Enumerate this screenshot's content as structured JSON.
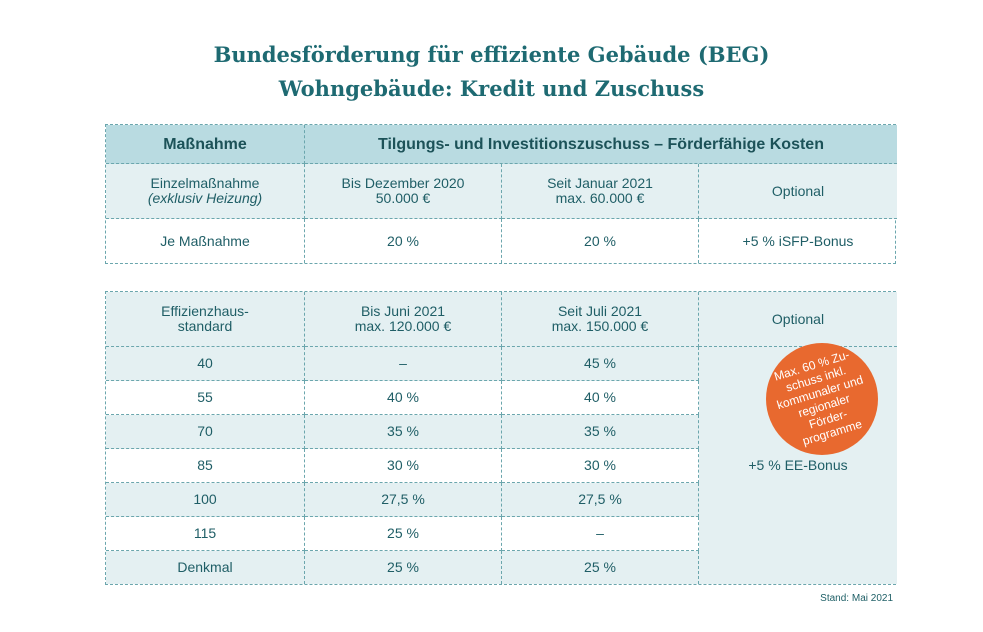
{
  "title": {
    "line1": "Bundesförderung für effiziente Gebäude (BEG)",
    "line2": "Wohngebäude: Kredit und Zuschuss"
  },
  "table1": {
    "header": {
      "measure": "Maßnahme",
      "subsidy": "Tilgungs- und Investitionszuschuss – Förderfähige Kosten"
    },
    "subheader": {
      "single_line1": "Einzelmaßnahme",
      "single_line2": "(exklusiv Heizung)",
      "col2_line1": "Bis Dezember 2020",
      "col2_line2": "50.000 €",
      "col3_line1": "Seit Januar 2021",
      "col3_line2": "max. 60.000 €",
      "col4": "Optional"
    },
    "row": {
      "label": "Je Maßnahme",
      "col2": "20 %",
      "col3": "20 %",
      "col4": "+5 % iSFP-Bonus"
    }
  },
  "table2": {
    "header": {
      "col1_line1": "Effizienzhaus-",
      "col1_line2": "standard",
      "col2_line1": "Bis Juni 2021",
      "col2_line2": "max. 120.000 €",
      "col3_line1": "Seit Juli 2021",
      "col3_line2": "max. 150.000 €",
      "col4": "Optional"
    },
    "rows": [
      {
        "standard": "40",
        "until_june": "–",
        "since_july": "45 %"
      },
      {
        "standard": "55",
        "until_june": "40 %",
        "since_july": "40 %"
      },
      {
        "standard": "70",
        "until_june": "35 %",
        "since_july": "35 %"
      },
      {
        "standard": "85",
        "until_june": "30 %",
        "since_july": "30 %"
      },
      {
        "standard": "100",
        "until_june": "27,5 %",
        "since_july": "27,5 %"
      },
      {
        "standard": "115",
        "until_june": "25 %",
        "since_july": "–"
      },
      {
        "standard": "Denkmal",
        "until_june": "25 %",
        "since_july": "25 %"
      }
    ],
    "bonus": "+5 % EE-Bonus"
  },
  "badge": {
    "lines": [
      "Max. 60 % Zu-",
      "schuss inkl.",
      "kommunaler und",
      "regionaler Förder-",
      "programme"
    ],
    "color": "#e8692f"
  },
  "footer": {
    "stand": "Stand: Mai 2021"
  }
}
